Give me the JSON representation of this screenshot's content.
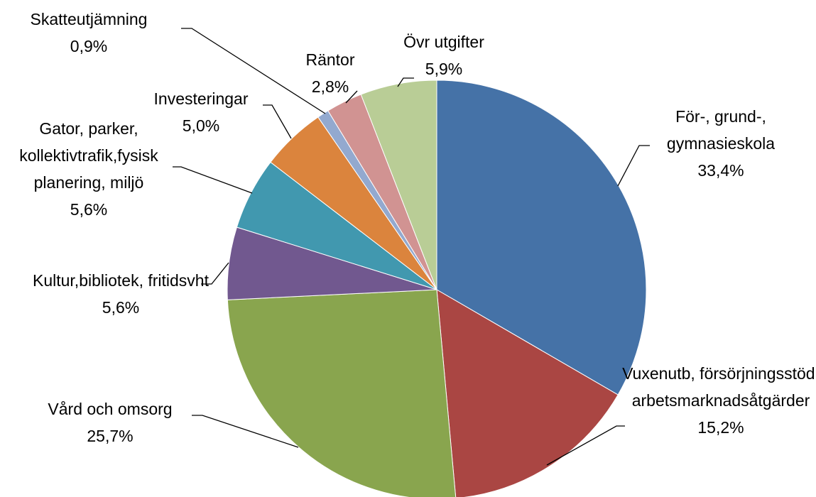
{
  "chart_data": {
    "type": "pie",
    "categories": [
      "För-, grund-, gymnasieskola",
      "Vuxenutb, försörjningsstöd, arbetsmarknadsåtgärder",
      "Vård och omsorg",
      "Kultur,bibliotek, fritidsvht",
      "Gator, parker, kollektivtrafik,fysisk planering, miljö",
      "Investeringar",
      "Skatteutjämning",
      "Räntor",
      "Övr utgifter"
    ],
    "values": [
      33.4,
      15.2,
      25.7,
      5.6,
      5.6,
      5.0,
      0.9,
      2.8,
      5.9
    ],
    "value_labels": [
      "33,4%",
      "15,2%",
      "25,7%",
      "5,6%",
      "5,6%",
      "5,0%",
      "0,9%",
      "2,8%",
      "5,9%"
    ],
    "colors": [
      "#4572a7",
      "#aa4643",
      "#89a54e",
      "#71588f",
      "#4198af",
      "#db843d",
      "#93a9cf",
      "#d19392",
      "#b9cd96"
    ]
  }
}
